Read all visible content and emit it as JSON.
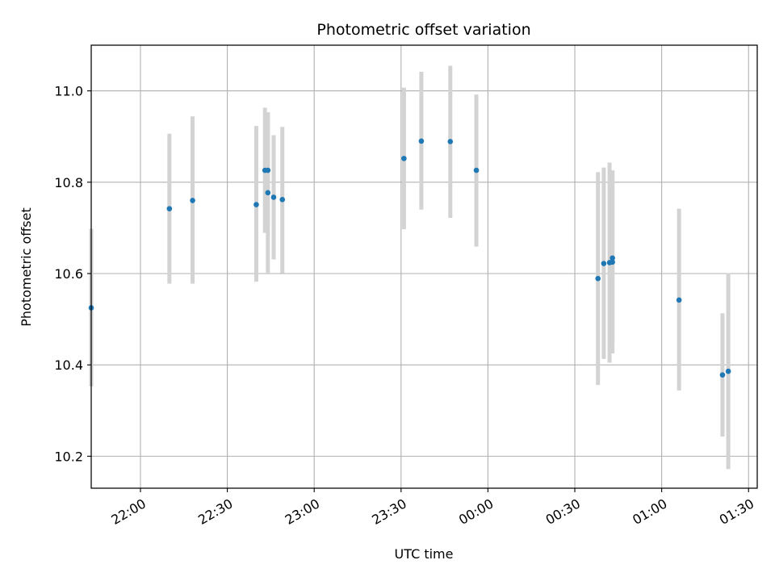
{
  "chart_data": {
    "type": "scatter",
    "title": "Photometric offset variation",
    "xlabel": "UTC time",
    "ylabel": "Photometric offset",
    "x_tick_labels": [
      "22:00",
      "22:30",
      "23:00",
      "23:30",
      "00:00",
      "00:30",
      "01:00",
      "01:30"
    ],
    "x_tick_times": [
      "22:00",
      "22:30",
      "23:00",
      "23:30",
      "00:00",
      "00:30",
      "01:00",
      "01:30"
    ],
    "xlim": [
      "21:43",
      "01:33"
    ],
    "y_ticks": [
      10.2,
      10.4,
      10.6,
      10.8,
      11.0
    ],
    "y_tick_labels": [
      "10.2",
      "10.4",
      "10.6",
      "10.8",
      "11.0"
    ],
    "ylim": [
      10.13,
      11.1
    ],
    "grid": true,
    "marker_color": "#1f77b4",
    "errorbar_color": "#d3d3d3",
    "points": [
      {
        "time": "21:43",
        "y": 10.525,
        "ylow": 10.353,
        "yhigh": 10.698
      },
      {
        "time": "22:10",
        "y": 10.742,
        "ylow": 10.578,
        "yhigh": 10.906
      },
      {
        "time": "22:18",
        "y": 10.76,
        "ylow": 10.578,
        "yhigh": 10.944
      },
      {
        "time": "22:40",
        "y": 10.751,
        "ylow": 10.582,
        "yhigh": 10.923
      },
      {
        "time": "22:43",
        "y": 10.826,
        "ylow": 10.689,
        "yhigh": 10.963
      },
      {
        "time": "22:44",
        "y": 10.826,
        "ylow": 10.7,
        "yhigh": 10.953
      },
      {
        "time": "22:44",
        "y": 10.777,
        "ylow": 10.6,
        "yhigh": 10.953
      },
      {
        "time": "22:46",
        "y": 10.767,
        "ylow": 10.631,
        "yhigh": 10.903
      },
      {
        "time": "22:49",
        "y": 10.762,
        "ylow": 10.601,
        "yhigh": 10.921
      },
      {
        "time": "23:31",
        "y": 10.852,
        "ylow": 10.697,
        "yhigh": 11.007
      },
      {
        "time": "23:37",
        "y": 10.89,
        "ylow": 10.74,
        "yhigh": 11.042
      },
      {
        "time": "23:47",
        "y": 10.889,
        "ylow": 10.722,
        "yhigh": 11.055
      },
      {
        "time": "23:56",
        "y": 10.826,
        "ylow": 10.659,
        "yhigh": 10.992
      },
      {
        "time": "00:38",
        "y": 10.589,
        "ylow": 10.356,
        "yhigh": 10.822
      },
      {
        "time": "00:40",
        "y": 10.622,
        "ylow": 10.413,
        "yhigh": 10.832
      },
      {
        "time": "00:42",
        "y": 10.624,
        "ylow": 10.405,
        "yhigh": 10.843
      },
      {
        "time": "00:43",
        "y": 10.625,
        "ylow": 10.425,
        "yhigh": 10.825
      },
      {
        "time": "00:43",
        "y": 10.634,
        "ylow": 10.442,
        "yhigh": 10.826
      },
      {
        "time": "01:06",
        "y": 10.542,
        "ylow": 10.344,
        "yhigh": 10.742
      },
      {
        "time": "01:21",
        "y": 10.378,
        "ylow": 10.243,
        "yhigh": 10.513
      },
      {
        "time": "01:23",
        "y": 10.386,
        "ylow": 10.172,
        "yhigh": 10.601
      }
    ]
  }
}
